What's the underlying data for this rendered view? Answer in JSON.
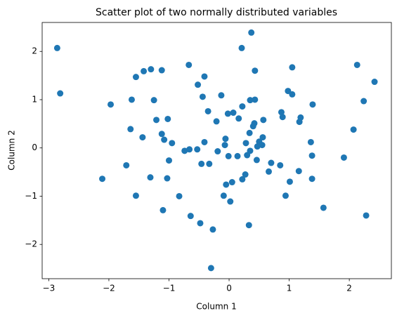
{
  "chart_data": {
    "type": "scatter",
    "title": "Scatter plot of two normally distributed variables",
    "x_label": "Column 1",
    "y_label": "Column 2",
    "color": "#1f77b4",
    "x": [
      -2.86,
      -2.81,
      -2.11,
      -1.97,
      -1.71,
      -1.64,
      -1.62,
      -1.55,
      -1.55,
      -1.44,
      -1.42,
      -1.3,
      -1.31,
      -1.25,
      -1.21,
      -1.12,
      -1.12,
      -1.1,
      -1.08,
      -1.03,
      -1.02,
      -1.0,
      -0.95,
      -0.83,
      -0.74,
      -0.67,
      -0.66,
      -0.64,
      -0.53,
      -0.52,
      -0.48,
      -0.46,
      -0.44,
      -0.41,
      -0.41,
      -0.35,
      -0.33,
      -0.3,
      -0.27,
      -0.21,
      -0.19,
      -0.13,
      -0.09,
      -0.07,
      -0.06,
      -0.05,
      -0.02,
      -0.01,
      0.02,
      0.05,
      0.07,
      0.14,
      0.16,
      0.21,
      0.22,
      0.22,
      0.27,
      0.28,
      0.3,
      0.33,
      0.34,
      0.35,
      0.35,
      0.37,
      0.4,
      0.42,
      0.43,
      0.43,
      0.46,
      0.47,
      0.5,
      0.55,
      0.56,
      0.57,
      0.66,
      0.7,
      0.85,
      0.87,
      0.89,
      0.94,
      0.98,
      1.01,
      1.05,
      1.05,
      1.16,
      1.17,
      1.19,
      1.36,
      1.38,
      1.38,
      1.39,
      1.57,
      1.91,
      2.07,
      2.13,
      2.24,
      2.28,
      2.42
    ],
    "values": [
      2.07,
      1.13,
      -0.64,
      0.9,
      -0.36,
      0.39,
      1.0,
      1.47,
      -0.99,
      0.22,
      1.59,
      1.63,
      -0.61,
      0.99,
      0.58,
      1.61,
      0.29,
      -1.29,
      0.17,
      -0.63,
      0.6,
      -0.26,
      0.1,
      -1.0,
      -0.06,
      1.72,
      -0.03,
      -1.41,
      -0.03,
      1.31,
      -1.56,
      -0.33,
      1.06,
      1.48,
      0.12,
      0.76,
      -0.33,
      -2.49,
      -1.69,
      0.55,
      -0.07,
      1.09,
      -0.99,
      0.06,
      0.19,
      -0.76,
      0.71,
      -0.17,
      -1.11,
      -0.71,
      0.73,
      -0.17,
      0.61,
      2.07,
      0.86,
      -0.65,
      -0.55,
      0.1,
      -0.15,
      -1.6,
      0.31,
      0.99,
      -0.06,
      2.39,
      0.45,
      0.51,
      1.6,
      1.0,
      -0.25,
      0.03,
      0.13,
      0.06,
      0.22,
      0.58,
      -0.49,
      -0.31,
      -0.36,
      0.74,
      0.64,
      -0.99,
      1.18,
      -0.7,
      1.11,
      1.67,
      -0.48,
      0.54,
      0.63,
      0.12,
      -0.16,
      -0.64,
      0.9,
      -1.24,
      -0.2,
      0.38,
      1.72,
      0.97,
      -1.4,
      1.37
    ],
    "xlim": [
      -3.11,
      2.7
    ],
    "xticks": [
      {
        "value": -3,
        "label": "−3"
      },
      {
        "value": -2,
        "label": "−2"
      },
      {
        "value": -1,
        "label": "−1"
      },
      0,
      1,
      2
    ],
    "ylim": [
      -2.71,
      2.6
    ],
    "yticks": [
      {
        "value": -2,
        "label": "−2"
      },
      {
        "value": -1,
        "label": "−1"
      },
      0,
      1,
      2
    ]
  }
}
